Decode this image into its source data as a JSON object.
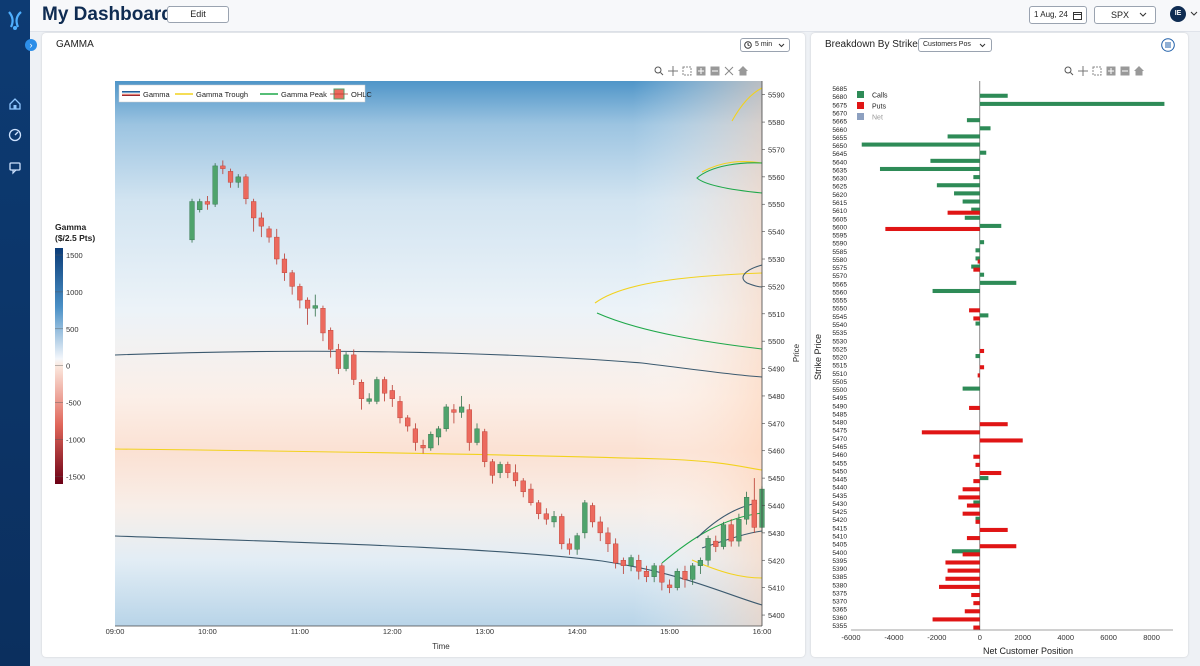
{
  "header": {
    "title": "My Dashboard",
    "edit_label": "Edit",
    "date": "1 Aug, 24",
    "symbol": "SPX",
    "avatar": "IE"
  },
  "gamma_panel": {
    "title": "GAMMA",
    "interval": "5 min",
    "legend": [
      "Gamma",
      "Gamma Trough",
      "Gamma Peak",
      "OHLC"
    ],
    "colorbar_title": "Gamma",
    "colorbar_subtitle": "($/2.5 Pts)",
    "colorbar_ticks": [
      "1500",
      "1000",
      "500",
      "0",
      "-500",
      "-1000",
      "-1500"
    ],
    "x_label": "Time",
    "y_label": "Price"
  },
  "strike_panel": {
    "title": "Breakdown By Strike",
    "dropdown": "Customers Pos",
    "legend": [
      "Calls",
      "Puts",
      "Net"
    ],
    "x_label": "Net Customer Position",
    "y_label": "Strike Price"
  },
  "colors": {
    "calls": "#2e8b57",
    "puts": "#e01515",
    "net": "#8da0c0",
    "trough": "#f2d21e",
    "peak": "#1fa84a",
    "navy": "#0f2c52"
  },
  "chart_data": [
    {
      "type": "heatmap",
      "x_ticks": [
        "09:00",
        "10:00",
        "11:00",
        "12:00",
        "13:00",
        "14:00",
        "15:00",
        "16:00"
      ],
      "y_ticks": [
        5590,
        5580,
        5570,
        5560,
        5550,
        5540,
        5530,
        5520,
        5510,
        5500,
        5490,
        5480,
        5470,
        5460,
        5450,
        5440,
        5430,
        5420,
        5410,
        5400
      ],
      "ylim": [
        5396,
        5595
      ],
      "xlim": [
        0,
        84
      ],
      "candles": [
        [
          10,
          5537,
          5551,
          5536,
          5552
        ],
        [
          11,
          5548,
          5551,
          5547,
          5552
        ],
        [
          12,
          5551,
          5550,
          5548,
          5553
        ],
        [
          13,
          5550,
          5564,
          5549,
          5565
        ],
        [
          14,
          5564,
          5563,
          5561,
          5566
        ],
        [
          15,
          5562,
          5558,
          5556,
          5563
        ],
        [
          16,
          5558,
          5560,
          5556,
          5561
        ],
        [
          17,
          5560,
          5552,
          5550,
          5561
        ],
        [
          18,
          5551,
          5545,
          5540,
          5552
        ],
        [
          19,
          5545,
          5542,
          5538,
          5547
        ],
        [
          20,
          5541,
          5538,
          5536,
          5542
        ],
        [
          21,
          5538,
          5530,
          5528,
          5541
        ],
        [
          22,
          5530,
          5525,
          5522,
          5532
        ],
        [
          23,
          5525,
          5520,
          5517,
          5526
        ],
        [
          24,
          5520,
          5515,
          5512,
          5521
        ],
        [
          25,
          5515,
          5512,
          5506,
          5516
        ],
        [
          26,
          5512,
          5513,
          5509,
          5517
        ],
        [
          27,
          5512,
          5503,
          5500,
          5513
        ],
        [
          28,
          5504,
          5497,
          5494,
          5505
        ],
        [
          29,
          5497,
          5490,
          5488,
          5499
        ],
        [
          30,
          5490,
          5495,
          5489,
          5496
        ],
        [
          31,
          5495,
          5486,
          5484,
          5497
        ],
        [
          32,
          5485,
          5479,
          5475,
          5486
        ],
        [
          33,
          5478,
          5479,
          5477,
          5481
        ],
        [
          34,
          5478,
          5486,
          5477,
          5487
        ],
        [
          35,
          5486,
          5481,
          5478,
          5487
        ],
        [
          36,
          5482,
          5479,
          5476,
          5484
        ],
        [
          37,
          5478,
          5472,
          5470,
          5480
        ],
        [
          38,
          5472,
          5469,
          5467,
          5473
        ],
        [
          39,
          5468,
          5463,
          5460,
          5470
        ],
        [
          40,
          5462,
          5461,
          5459,
          5464
        ],
        [
          41,
          5461,
          5466,
          5460,
          5467
        ],
        [
          42,
          5465,
          5468,
          5462,
          5469
        ],
        [
          43,
          5468,
          5476,
          5467,
          5477
        ],
        [
          44,
          5475,
          5474,
          5470,
          5477
        ],
        [
          45,
          5474,
          5476,
          5472,
          5480
        ],
        [
          46,
          5475,
          5463,
          5460,
          5477
        ],
        [
          47,
          5463,
          5468,
          5462,
          5470
        ],
        [
          48,
          5467,
          5456,
          5454,
          5468
        ],
        [
          49,
          5456,
          5451,
          5448,
          5457
        ],
        [
          50,
          5452,
          5455,
          5450,
          5456
        ],
        [
          51,
          5455,
          5452,
          5450,
          5456
        ],
        [
          52,
          5452,
          5449,
          5447,
          5455
        ],
        [
          53,
          5449,
          5445,
          5443,
          5450
        ],
        [
          54,
          5446,
          5441,
          5440,
          5448
        ],
        [
          55,
          5441,
          5437,
          5435,
          5442
        ],
        [
          56,
          5437,
          5435,
          5433,
          5439
        ],
        [
          57,
          5434,
          5436,
          5432,
          5438
        ],
        [
          58,
          5436,
          5426,
          5424,
          5437
        ],
        [
          59,
          5426,
          5424,
          5422,
          5428
        ],
        [
          60,
          5424,
          5429,
          5422,
          5430
        ],
        [
          61,
          5430,
          5441,
          5428,
          5442
        ],
        [
          62,
          5440,
          5434,
          5432,
          5441
        ],
        [
          63,
          5434,
          5430,
          5427,
          5436
        ],
        [
          64,
          5430,
          5426,
          5423,
          5432
        ],
        [
          65,
          5426,
          5419,
          5417,
          5428
        ],
        [
          66,
          5420,
          5418,
          5415,
          5421
        ],
        [
          67,
          5418,
          5421,
          5416,
          5422
        ],
        [
          68,
          5420,
          5416,
          5413,
          5422
        ],
        [
          69,
          5416,
          5414,
          5412,
          5418
        ],
        [
          70,
          5414,
          5418,
          5412,
          5419
        ],
        [
          71,
          5418,
          5412,
          5409,
          5419
        ],
        [
          72,
          5411,
          5410,
          5408,
          5413
        ],
        [
          73,
          5410,
          5416,
          5409,
          5417
        ],
        [
          74,
          5416,
          5413,
          5410,
          5418
        ],
        [
          75,
          5413,
          5418,
          5411,
          5419
        ],
        [
          76,
          5418,
          5420,
          5415,
          5421
        ],
        [
          77,
          5420,
          5428,
          5418,
          5429
        ],
        [
          78,
          5427,
          5425,
          5423,
          5429
        ],
        [
          79,
          5425,
          5433,
          5424,
          5434
        ],
        [
          80,
          5433,
          5427,
          5425,
          5435
        ],
        [
          81,
          5427,
          5435,
          5425,
          5437
        ],
        [
          82,
          5435,
          5443,
          5433,
          5445
        ],
        [
          83,
          5442,
          5432,
          5430,
          5450
        ],
        [
          84,
          5432,
          5446,
          5430,
          5447
        ]
      ]
    },
    {
      "type": "bar",
      "orientation": "horizontal",
      "xlim": [
        -6000,
        9000
      ],
      "x_ticks": [
        -6000,
        -4000,
        -2000,
        0,
        2000,
        4000,
        6000,
        8000
      ],
      "categories": [
        5685,
        5680,
        5675,
        5670,
        5665,
        5660,
        5655,
        5650,
        5645,
        5640,
        5635,
        5630,
        5625,
        5620,
        5615,
        5610,
        5605,
        5600,
        5595,
        5590,
        5585,
        5580,
        5575,
        5570,
        5565,
        5560,
        5555,
        5550,
        5545,
        5540,
        5535,
        5530,
        5525,
        5520,
        5515,
        5510,
        5505,
        5500,
        5495,
        5490,
        5485,
        5480,
        5475,
        5470,
        5465,
        5460,
        5455,
        5450,
        5445,
        5440,
        5435,
        5430,
        5425,
        5420,
        5415,
        5410,
        5405,
        5400,
        5395,
        5390,
        5385,
        5380,
        5375,
        5370,
        5365,
        5360,
        5355
      ],
      "series": [
        {
          "name": "Calls",
          "values": [
            0,
            1300,
            8600,
            0,
            -600,
            500,
            -1500,
            -5500,
            300,
            -2300,
            -4650,
            -300,
            -2000,
            -1200,
            -800,
            -400,
            -700,
            1000,
            0,
            200,
            -200,
            -200,
            -400,
            200,
            1700,
            -2200,
            0,
            0,
            400,
            -200,
            0,
            0,
            0,
            -200,
            0,
            0,
            0,
            -800,
            0,
            0,
            0,
            0,
            0,
            0,
            0,
            0,
            0,
            0,
            400,
            0,
            0,
            -300,
            0,
            -200,
            0,
            0,
            0,
            -1300,
            0,
            0,
            0,
            0,
            0,
            0,
            0,
            0,
            0
          ]
        },
        {
          "name": "Puts",
          "values": [
            0,
            0,
            0,
            0,
            0,
            0,
            0,
            0,
            0,
            0,
            0,
            0,
            0,
            0,
            0,
            -1500,
            0,
            -4400,
            0,
            0,
            0,
            -100,
            -300,
            0,
            0,
            0,
            0,
            -500,
            -300,
            0,
            0,
            0,
            200,
            0,
            200,
            -100,
            0,
            0,
            0,
            -500,
            0,
            1300,
            -2700,
            2000,
            0,
            -300,
            -200,
            1000,
            -300,
            -800,
            -1000,
            -600,
            -800,
            -200,
            1300,
            -600,
            1700,
            -800,
            -1600,
            -1500,
            -1600,
            -1900,
            -400,
            -300,
            -700,
            -2200,
            -300
          ]
        }
      ]
    }
  ]
}
